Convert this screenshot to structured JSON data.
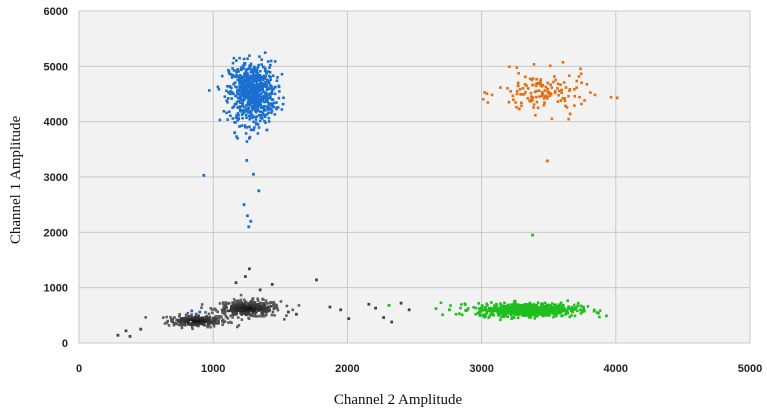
{
  "chart_data": {
    "type": "scatter",
    "xlabel": "Channel 2 Amplitude",
    "ylabel": "Channel 1 Amplitude",
    "xlim": [
      0,
      5000
    ],
    "ylim": [
      0,
      6000
    ],
    "xticks": [
      "0",
      "1000",
      "2000",
      "3000",
      "4000",
      "5000"
    ],
    "yticks": [
      "0",
      "1000",
      "2000",
      "3000",
      "4000",
      "5000",
      "6000"
    ],
    "grid": true,
    "plot_background": "#f2f2f2",
    "clusters": [
      {
        "color": "#333333",
        "shading": "density",
        "center": [
          880,
          400
        ],
        "spread": [
          110,
          55
        ],
        "count": 220
      },
      {
        "color": "#333333",
        "shading": "density",
        "center": [
          1260,
          620
        ],
        "spread": [
          120,
          75
        ],
        "count": 320
      },
      {
        "color": "#1a6fd1",
        "center": [
          1290,
          4520
        ],
        "spread": [
          85,
          280
        ],
        "count": 700
      },
      {
        "color": "#e66d0f",
        "center": [
          3460,
          4520
        ],
        "spread": [
          170,
          190
        ],
        "count": 140
      },
      {
        "color": "#1dbf1d",
        "center": [
          3340,
          600
        ],
        "spread": [
          190,
          60
        ],
        "count": 650
      }
    ],
    "extra_points": [
      {
        "color": "#1a6fd1",
        "points": [
          [
            930,
            3030
          ],
          [
            1230,
            2500
          ],
          [
            1255,
            2300
          ],
          [
            1280,
            2200
          ],
          [
            1265,
            2100
          ],
          [
            1340,
            2750
          ],
          [
            1300,
            3050
          ],
          [
            1250,
            3300
          ],
          [
            1270,
            3700
          ],
          [
            1160,
            3800
          ],
          [
            1400,
            3850
          ],
          [
            840,
            580
          ],
          [
            900,
            560
          ]
        ]
      },
      {
        "color": "#e66d0f",
        "points": [
          [
            4010,
            4430
          ],
          [
            3490,
            3290
          ],
          [
            3280,
            4230
          ],
          [
            3660,
            4140
          ]
        ]
      },
      {
        "color": "#1dbf1d",
        "points": [
          [
            3380,
            1950
          ],
          [
            2660,
            620
          ],
          [
            2760,
            600
          ],
          [
            3930,
            490
          ],
          [
            2310,
            680
          ]
        ]
      },
      {
        "color": "#444444",
        "points": [
          [
            290,
            140
          ],
          [
            350,
            220
          ],
          [
            380,
            120
          ],
          [
            460,
            250
          ],
          [
            1240,
            1200
          ],
          [
            1270,
            1340
          ],
          [
            1350,
            960
          ],
          [
            1440,
            1060
          ],
          [
            1170,
            1090
          ],
          [
            1770,
            1140
          ],
          [
            1870,
            650
          ],
          [
            1950,
            600
          ],
          [
            2010,
            440
          ],
          [
            2210,
            630
          ],
          [
            2270,
            460
          ],
          [
            2330,
            380
          ],
          [
            2400,
            720
          ],
          [
            2460,
            600
          ],
          [
            1560,
            560
          ],
          [
            1620,
            520
          ],
          [
            2160,
            700
          ]
        ]
      }
    ]
  }
}
